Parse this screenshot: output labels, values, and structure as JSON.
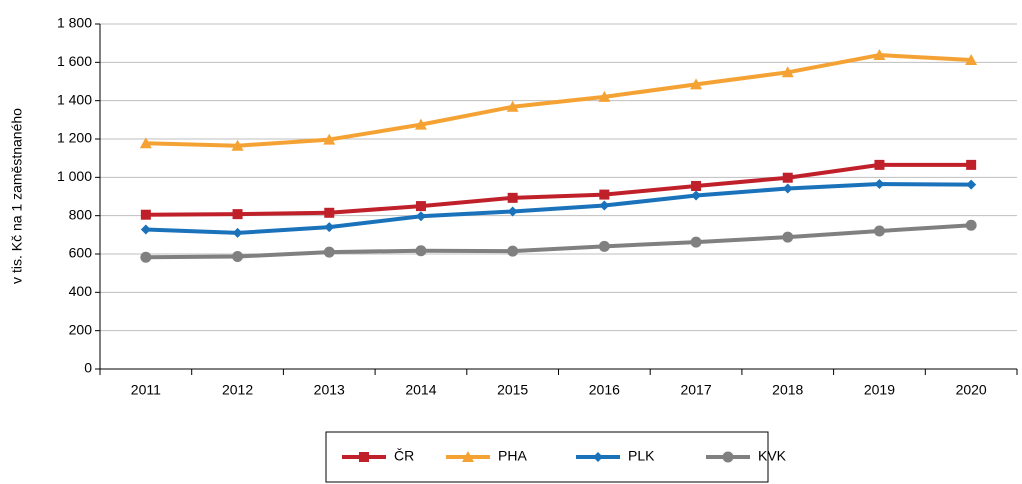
{
  "chart_data": {
    "type": "line",
    "y_label": "v tis. Kč na 1 zaměstnaného",
    "categories": [
      "2011",
      "2012",
      "2013",
      "2014",
      "2015",
      "2016",
      "2017",
      "2018",
      "2019",
      "2020"
    ],
    "series": [
      {
        "name": "ČR",
        "color": "#c0202a",
        "marker": "square",
        "values": [
          805,
          808,
          815,
          850,
          893,
          910,
          955,
          998,
          1065,
          1065
        ]
      },
      {
        "name": "PHA",
        "color": "#f5a234",
        "marker": "triangle",
        "values": [
          1178,
          1165,
          1197,
          1275,
          1368,
          1420,
          1485,
          1548,
          1638,
          1612
        ]
      },
      {
        "name": "PLK",
        "color": "#1a72bb",
        "marker": "diamond",
        "values": [
          728,
          710,
          740,
          797,
          822,
          853,
          905,
          942,
          965,
          962
        ]
      },
      {
        "name": "KVK",
        "color": "#808080",
        "marker": "circle",
        "values": [
          583,
          587,
          610,
          617,
          615,
          640,
          662,
          688,
          720,
          750
        ]
      }
    ],
    "ylim": [
      0,
      1800
    ],
    "yticks": [
      0,
      200,
      400,
      600,
      800,
      {
        "value": 1000,
        "label": "1 000"
      },
      {
        "value": 1200,
        "label": "1 200"
      },
      {
        "value": 1400,
        "label": "1 400"
      },
      {
        "value": 1600,
        "label": "1 600"
      },
      {
        "value": 1800,
        "label": "1 800"
      }
    ],
    "grid": true,
    "legend": "bottom"
  }
}
